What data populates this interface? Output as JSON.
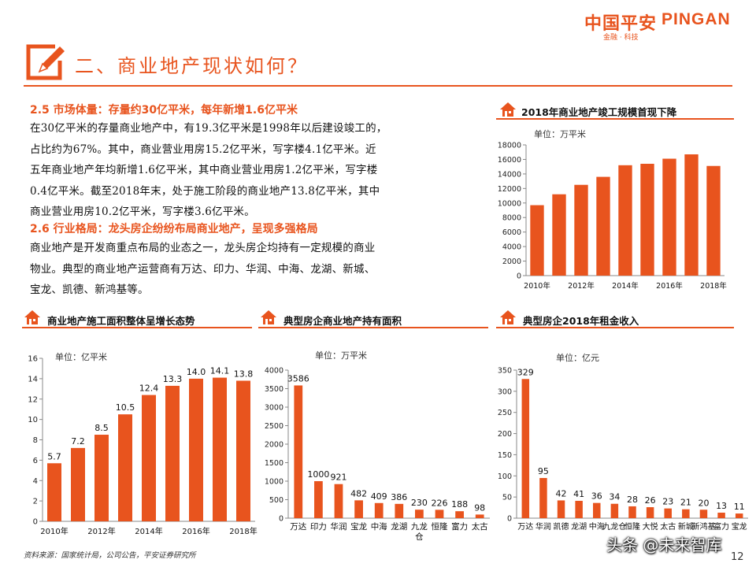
{
  "header": {
    "logo_cn": "中国平安",
    "logo_en": "PINGAN",
    "logo_sub": "金融 · 科技",
    "section_title": "二、商业地产现状如何？"
  },
  "text": {
    "heading1": "2.5 市场体量：存量约30亿平米，每年新增1.6亿平米",
    "para1": [
      "在30亿平米的存量商业地产中，有19.3亿平米是1998年以后建设竣工的，",
      "占比约为67%。其中，商业营业用房15.2亿平米，写字楼4.1亿平米。近",
      "五年商业地产年均新增1.6亿平米，其中商业营业用房1.2亿平米，写字楼",
      "0.4亿平米。截至2018年末，处于施工阶段的商业地产13.8亿平米，其中",
      "商业营业用房10.2亿平米，写字楼3.6亿平米。"
    ],
    "heading2": "2.6 行业格局：龙头房企纷纷布局商业地产，呈现多强格局",
    "para2": [
      "商业地产是开发商重点布局的业态之一，龙头房企均持有一定规模的商业",
      "物业。典型的商业地产运营商有万达、印力、华润、中海、龙湖、新城、",
      "宝龙、凯德、新鸿基等。"
    ]
  },
  "footer": {
    "source": "资料来源：国家统计局，公司公告，平安证券研究所",
    "watermark": "头条 @未来智库",
    "page_number": "12"
  },
  "colors": {
    "accent": "#e8541e",
    "bar": "#e8541e"
  },
  "chart_data": [
    {
      "id": "completion",
      "type": "bar",
      "title": "2018年商业地产竣工规模首现下降",
      "unit": "单位：万平米",
      "x": [
        2010,
        2011,
        2012,
        2013,
        2014,
        2015,
        2016,
        2017,
        2018
      ],
      "tick_labels": [
        "2010年",
        "2012年",
        "2014年",
        "2016年",
        "2018年"
      ],
      "values": [
        9700,
        11200,
        12500,
        13600,
        15200,
        15400,
        16100,
        16700,
        15100
      ],
      "ylim": [
        0,
        18000
      ],
      "yticks": [
        0,
        2000,
        4000,
        6000,
        8000,
        10000,
        12000,
        14000,
        16000,
        18000
      ]
    },
    {
      "id": "construction",
      "type": "bar",
      "title": "商业地产施工面积整体呈增长态势",
      "unit": "单位：亿平米",
      "x": [
        2010,
        2011,
        2012,
        2013,
        2014,
        2015,
        2016,
        2017,
        2018
      ],
      "tick_labels": [
        "2010年",
        "2012年",
        "2014年",
        "2016年",
        "2018年"
      ],
      "values": [
        5.7,
        7.2,
        8.5,
        10.5,
        12.4,
        13.3,
        14.0,
        14.1,
        13.8
      ],
      "value_labels": [
        "5.7",
        "7.2",
        "8.5",
        "10.5",
        "12.4",
        "13.3",
        "14.0",
        "14.1",
        "13.8"
      ],
      "ylim": [
        0,
        16
      ],
      "yticks": [
        0,
        2,
        4,
        6,
        8,
        10,
        12,
        14,
        16
      ]
    },
    {
      "id": "holdings",
      "type": "bar",
      "title": "典型房企商业地产持有面积",
      "unit": "单位：万平米",
      "categories": [
        "万达",
        "印力",
        "华润",
        "宝龙",
        "中海",
        "龙湖",
        "九龙仓",
        "恒隆",
        "富力",
        "太古"
      ],
      "values": [
        3586,
        1000,
        921,
        482,
        409,
        386,
        230,
        226,
        188,
        98
      ],
      "ylim": [
        0,
        4000
      ],
      "yticks": [
        0,
        500,
        1000,
        1500,
        2000,
        2500,
        3000,
        3500,
        4000
      ]
    },
    {
      "id": "rent",
      "type": "bar",
      "title": "典型房企2018年租金收入",
      "unit": "单位：亿元",
      "categories": [
        "万达",
        "华润",
        "凯德",
        "龙湖",
        "中海",
        "九龙仓",
        "恒隆",
        "大悦",
        "太古",
        "新城",
        "新鸿基",
        "富力",
        "宝龙"
      ],
      "values": [
        329,
        95,
        42,
        41,
        36,
        34,
        28,
        26,
        23,
        21,
        20,
        13,
        11
      ],
      "ylim": [
        0,
        350
      ],
      "yticks": [
        0,
        50,
        100,
        150,
        200,
        250,
        300,
        350
      ]
    }
  ]
}
